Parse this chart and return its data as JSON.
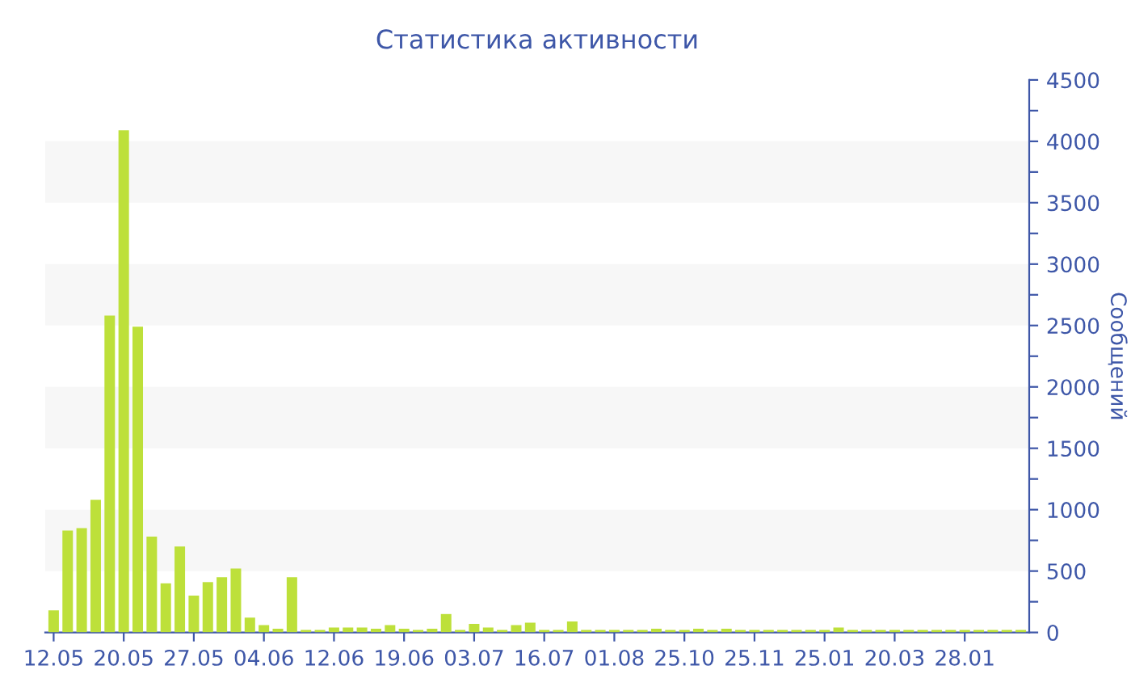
{
  "chart_data": {
    "type": "bar",
    "title": "Статистика активности",
    "ylabel": "Сообщений",
    "categories": [
      "12.05",
      null,
      null,
      null,
      null,
      "20.05",
      null,
      null,
      null,
      null,
      "27.05",
      null,
      null,
      null,
      null,
      "04.06",
      null,
      null,
      null,
      null,
      "12.06",
      null,
      null,
      null,
      null,
      "19.06",
      null,
      null,
      null,
      null,
      "03.07",
      null,
      null,
      null,
      null,
      "16.07",
      null,
      null,
      null,
      null,
      "01.08",
      null,
      null,
      null,
      null,
      "25.10",
      null,
      null,
      null,
      null,
      "25.11",
      null,
      null,
      null,
      null,
      "25.01",
      null,
      null,
      null,
      null,
      "20.03",
      null,
      null,
      null,
      null,
      "28.01",
      null,
      null,
      null,
      null
    ],
    "values": [
      180,
      830,
      850,
      1080,
      2580,
      4090,
      2490,
      780,
      400,
      700,
      300,
      410,
      450,
      520,
      120,
      60,
      30,
      450,
      20,
      20,
      40,
      40,
      40,
      30,
      60,
      30,
      20,
      30,
      150,
      20,
      70,
      40,
      20,
      60,
      80,
      20,
      20,
      90,
      20,
      20,
      20,
      20,
      20,
      30,
      20,
      20,
      30,
      20,
      30,
      20,
      20,
      20,
      20,
      20,
      20,
      20,
      40,
      20,
      20,
      20,
      20,
      20,
      20,
      20,
      20,
      20,
      20,
      20,
      20,
      20
    ],
    "color": "#bde03a",
    "ylim": [
      0,
      4500
    ],
    "yticks": [
      0,
      {
        "value": 250,
        "label": null
      },
      500,
      {
        "value": 750,
        "label": null
      },
      1000,
      {
        "value": 1250,
        "label": null
      },
      1500,
      {
        "value": 1750,
        "label": null
      },
      2000,
      {
        "value": 2250,
        "label": null
      },
      2500,
      {
        "value": 2750,
        "label": null
      },
      3000,
      {
        "value": 3250,
        "label": null
      },
      3500,
      {
        "value": 3750,
        "label": null
      },
      4000,
      {
        "value": 4250,
        "label": null
      },
      4500
    ],
    "bands": [
      {
        "axis": "y",
        "from": 500,
        "to": 1000,
        "color": "#f7f7f7"
      },
      {
        "axis": "y",
        "from": 1500,
        "to": 2000,
        "color": "#f7f7f7"
      },
      {
        "axis": "y",
        "from": 2500,
        "to": 3000,
        "color": "#f7f7f7"
      },
      {
        "axis": "y",
        "from": 3500,
        "to": 4000,
        "color": "#f7f7f7"
      }
    ],
    "grid": false,
    "legend": false
  }
}
